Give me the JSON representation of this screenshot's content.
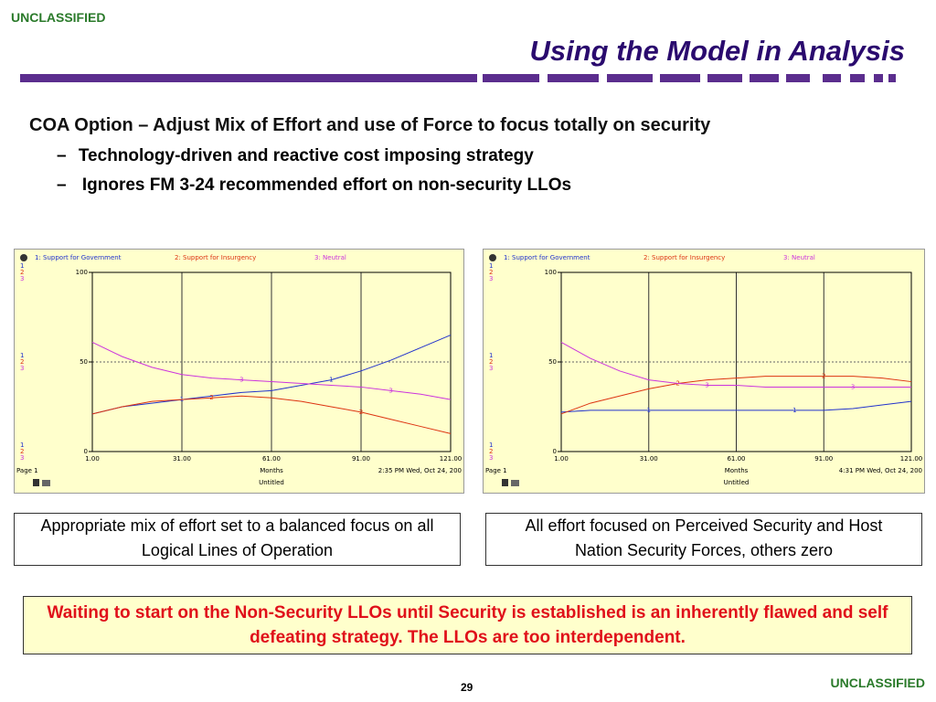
{
  "header": {
    "classification": "UNCLASSIFIED",
    "title": "Using the Model in Analysis"
  },
  "bullets": {
    "main": "COA Option – Adjust Mix of Effort and use of Force to focus totally on security",
    "subs": [
      "Technology-driven and reactive cost imposing strategy",
      "Ignores FM 3-24 recommended effort on non-security LLOs"
    ]
  },
  "chart_data": [
    {
      "type": "line",
      "x_label": "Months",
      "page_label": "Page 1",
      "timestamp": "2:35 PM   Wed, Oct 24, 200",
      "file_label": "Untitled",
      "series_markers": [
        "1",
        "2",
        "3"
      ],
      "x": [
        1,
        11,
        21,
        31,
        41,
        51,
        61,
        71,
        81,
        91,
        101,
        111,
        121
      ],
      "xlim": [
        1,
        121
      ],
      "xticks": [
        {
          "value": 1,
          "label": "1.00"
        },
        {
          "value": 31,
          "label": "31.00"
        },
        {
          "value": 61,
          "label": "61.00"
        },
        {
          "value": 91,
          "label": "91.00"
        },
        {
          "value": 121,
          "label": "121.00"
        }
      ],
      "ylim": [
        0,
        100
      ],
      "yticks": [
        0,
        50,
        100
      ],
      "series": [
        {
          "name": "1: Support for Government",
          "color": "#2233cc",
          "values": [
            21,
            25,
            27,
            29,
            31,
            33,
            34,
            37,
            40,
            45,
            51,
            58,
            65
          ]
        },
        {
          "name": "2: Support for Insurgency",
          "color": "#dd3311",
          "values": [
            21,
            25,
            28,
            29,
            30,
            31,
            30,
            28,
            25,
            22,
            18,
            14,
            10
          ]
        },
        {
          "name": "3: Neutral",
          "color": "#cc33dd",
          "values": [
            61,
            53,
            47,
            43,
            41,
            40,
            39,
            38,
            37,
            36,
            34,
            32,
            29
          ]
        }
      ]
    },
    {
      "type": "line",
      "x_label": "Months",
      "page_label": "Page 1",
      "timestamp": "4:31 PM   Wed, Oct 24, 200",
      "file_label": "Untitled",
      "series_markers": [
        "1",
        "2",
        "3"
      ],
      "x": [
        1,
        11,
        21,
        31,
        41,
        51,
        61,
        71,
        81,
        91,
        101,
        111,
        121
      ],
      "xlim": [
        1,
        121
      ],
      "xticks": [
        {
          "value": 1,
          "label": "1.00"
        },
        {
          "value": 31,
          "label": "31.00"
        },
        {
          "value": 61,
          "label": "61.00"
        },
        {
          "value": 91,
          "label": "91.00"
        },
        {
          "value": 121,
          "label": "121.00"
        }
      ],
      "ylim": [
        0,
        100
      ],
      "yticks": [
        0,
        50,
        100
      ],
      "series": [
        {
          "name": "1: Support for Government",
          "color": "#2233cc",
          "values": [
            22,
            23,
            23,
            23,
            23,
            23,
            23,
            23,
            23,
            23,
            24,
            26,
            28
          ]
        },
        {
          "name": "2: Support for Insurgency",
          "color": "#dd3311",
          "values": [
            21,
            27,
            31,
            35,
            38,
            40,
            41,
            42,
            42,
            42,
            42,
            41,
            39
          ]
        },
        {
          "name": "3: Neutral",
          "color": "#cc33dd",
          "values": [
            61,
            52,
            45,
            40,
            38,
            37,
            37,
            36,
            36,
            36,
            36,
            36,
            36
          ]
        }
      ]
    }
  ],
  "captions": [
    "Appropriate mix of effort set to a balanced focus on all Logical Lines of Operation",
    "All effort focused on Perceived Security and Host Nation Security Forces, others zero"
  ],
  "warning": "Waiting to start on the Non-Security LLOs until Security is established is an inherently flawed and self defeating strategy.  The LLOs are too interdependent.",
  "footer": {
    "page_number": "29",
    "classification": "UNCLASSIFIED"
  }
}
